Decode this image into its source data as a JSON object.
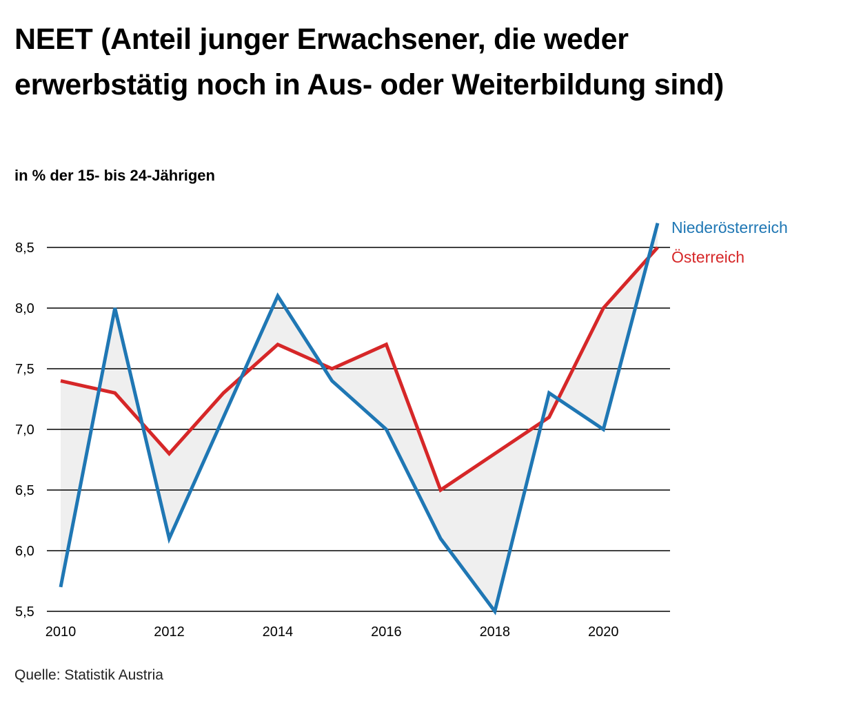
{
  "title": "NEET (Anteil junger Erwachsener, die weder erwerbstätig noch in Aus- oder Weiterbildung sind)",
  "subtitle": "in % der 15- bis 24-Jährigen",
  "source": "Quelle: Statistik Austria",
  "chart_data": {
    "type": "line",
    "x": [
      2010,
      2011,
      2012,
      2013,
      2014,
      2015,
      2016,
      2017,
      2018,
      2019,
      2020,
      2021
    ],
    "series": [
      {
        "name": "Niederösterreich",
        "color": "#1f77b4",
        "values": [
          5.7,
          8.0,
          6.1,
          7.1,
          8.1,
          7.4,
          7.0,
          6.1,
          5.5,
          7.3,
          7.0,
          8.7
        ]
      },
      {
        "name": "Österreich",
        "color": "#d62728",
        "values": [
          7.4,
          7.3,
          6.8,
          7.3,
          7.7,
          7.5,
          7.7,
          6.5,
          6.8,
          7.1,
          8.0,
          8.5
        ]
      }
    ],
    "ylim": [
      5.5,
      8.5
    ],
    "yticks": [
      "8,5",
      "8,0",
      "7,5",
      "7,0",
      "6,5",
      "6,0",
      "5,5"
    ],
    "ytick_values": [
      8.5,
      8.0,
      7.5,
      7.0,
      6.5,
      6.0,
      5.5
    ],
    "xticks": [
      "2010",
      "2012",
      "2014",
      "2016",
      "2018",
      "2020"
    ],
    "xtick_values": [
      2010,
      2012,
      2014,
      2016,
      2018,
      2020
    ],
    "fill_between_color": "#efefef",
    "grid": "horizontal",
    "legend": "right-end-labels"
  }
}
